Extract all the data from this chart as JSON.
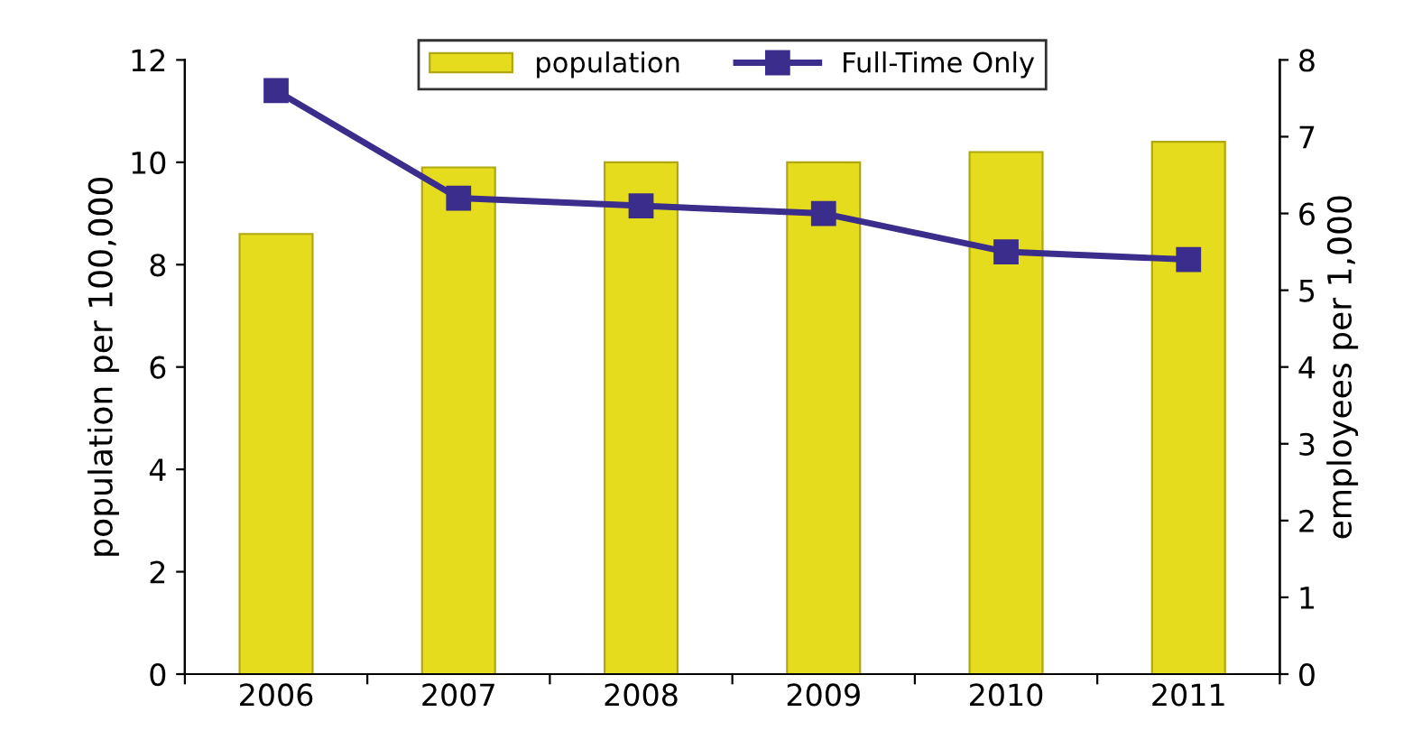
{
  "chart_data": {
    "type": "bar",
    "categories": [
      "2006",
      "2007",
      "2008",
      "2009",
      "2010",
      "2011"
    ],
    "ylabel": "population per 100,000",
    "y2label": "employees per 1,000",
    "ylim": [
      0,
      12
    ],
    "yticks": [
      0,
      2,
      4,
      6,
      8,
      10,
      12
    ],
    "y2lim": [
      0,
      8
    ],
    "y2ticks": [
      0,
      1,
      2,
      3,
      4,
      5,
      6,
      7,
      8
    ],
    "legend": "top",
    "grid": false,
    "series": [
      {
        "name": "population",
        "color": "#e6dc1e",
        "values": [
          8.6,
          9.9,
          10.0,
          10.0,
          10.2,
          10.4
        ]
      },
      {
        "name": "Full-Time Only",
        "type": "line",
        "axis": "y2",
        "color": "#3b2d8c",
        "marker": "square",
        "values": [
          7.6,
          6.2,
          6.1,
          6.0,
          5.5,
          5.4
        ]
      }
    ]
  }
}
